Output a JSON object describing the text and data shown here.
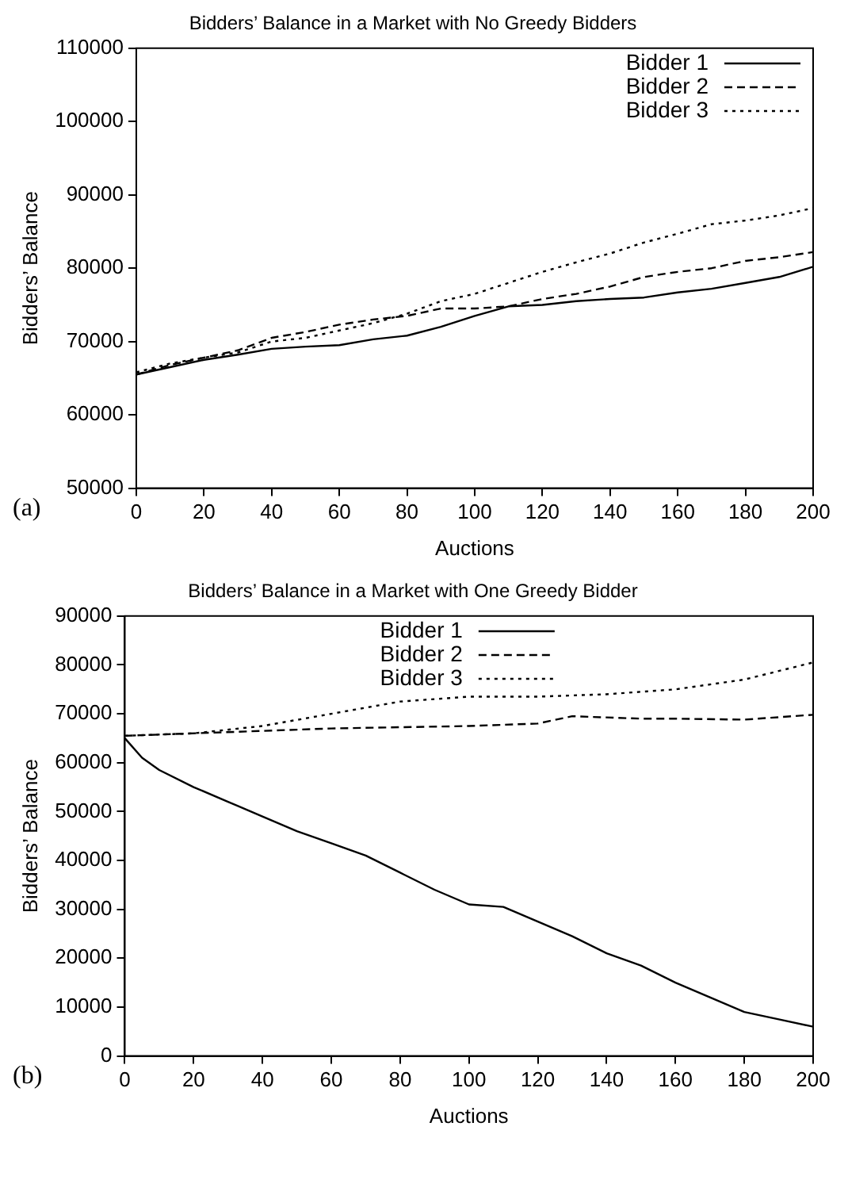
{
  "chart_data": [
    {
      "type": "line",
      "title": "Bidders’ Balance in a Market with No Greedy Bidders",
      "xlabel": "Auctions",
      "ylabel": "Bidders’ Balance",
      "annotations": [
        "(a)"
      ],
      "xlim": [
        0,
        200
      ],
      "xticks": [
        0,
        20,
        40,
        60,
        80,
        100,
        120,
        140,
        160,
        180,
        200
      ],
      "ylim": [
        50000,
        110000
      ],
      "yticks": [
        50000,
        60000,
        70000,
        80000,
        90000,
        100000,
        110000
      ],
      "legend": "top right",
      "marker": "none",
      "series": [
        {
          "name": "Bidder 1",
          "color": "#000000",
          "line_style": "solid",
          "x": [
            0,
            10,
            20,
            30,
            40,
            50,
            60,
            70,
            80,
            90,
            100,
            110,
            120,
            130,
            140,
            150,
            160,
            170,
            180,
            190,
            200
          ],
          "values": [
            65500,
            66500,
            67500,
            68200,
            69000,
            69300,
            69500,
            70300,
            70800,
            72000,
            73500,
            74800,
            75000,
            75500,
            75800,
            76000,
            76700,
            77200,
            78000,
            78800,
            80200
          ]
        },
        {
          "name": "Bidder 2",
          "color": "#000000",
          "line_style": "dashed",
          "x": [
            0,
            10,
            20,
            30,
            40,
            50,
            60,
            70,
            80,
            90,
            100,
            110,
            120,
            130,
            140,
            150,
            160,
            170,
            180,
            190,
            200
          ],
          "values": [
            65500,
            66800,
            67800,
            68800,
            70500,
            71300,
            72300,
            73000,
            73500,
            74500,
            74500,
            74800,
            75800,
            76500,
            77500,
            78800,
            79500,
            80000,
            81000,
            81500,
            82200
          ]
        },
        {
          "name": "Bidder 3",
          "color": "#000000",
          "line_style": "dotted",
          "x": [
            0,
            10,
            20,
            30,
            40,
            50,
            60,
            70,
            80,
            90,
            100,
            110,
            120,
            130,
            140,
            150,
            160,
            170,
            180,
            190,
            200
          ],
          "values": [
            65800,
            67000,
            67800,
            68500,
            70000,
            70500,
            71500,
            72500,
            73800,
            75500,
            76500,
            78000,
            79500,
            80800,
            82000,
            83500,
            84700,
            86000,
            86500,
            87200,
            88200
          ]
        }
      ]
    },
    {
      "type": "line",
      "title": "Bidders’ Balance in a Market with One Greedy Bidder",
      "xlabel": "Auctions",
      "ylabel": "Bidders’ Balance",
      "annotations": [
        "(b)"
      ],
      "xlim": [
        0,
        200
      ],
      "xticks": [
        0,
        20,
        40,
        60,
        80,
        100,
        120,
        140,
        160,
        180,
        200
      ],
      "ylim": [
        0,
        90000
      ],
      "yticks": [
        0,
        10000,
        20000,
        30000,
        40000,
        50000,
        60000,
        70000,
        80000,
        90000
      ],
      "legend": "top",
      "marker": "none",
      "series": [
        {
          "name": "Bidder 1",
          "color": "#000000",
          "line_style": "solid",
          "x": [
            0,
            5,
            10,
            20,
            30,
            40,
            50,
            60,
            70,
            80,
            90,
            100,
            110,
            120,
            130,
            140,
            150,
            160,
            170,
            180,
            190,
            200
          ],
          "values": [
            65000,
            61000,
            58500,
            55000,
            52000,
            49000,
            46000,
            43500,
            41000,
            37500,
            34000,
            31000,
            30500,
            27500,
            24500,
            21000,
            18500,
            15000,
            12000,
            9000,
            7500,
            6000
          ]
        },
        {
          "name": "Bidder 2",
          "color": "#000000",
          "line_style": "dashed",
          "x": [
            0,
            40,
            60,
            100,
            120,
            130,
            150,
            160,
            180,
            200
          ],
          "values": [
            65500,
            66500,
            67000,
            67500,
            68000,
            69500,
            69000,
            69000,
            68800,
            69800
          ]
        },
        {
          "name": "Bidder 3",
          "color": "#000000",
          "line_style": "dotted",
          "x": [
            0,
            20,
            40,
            60,
            80,
            100,
            120,
            140,
            160,
            180,
            200
          ],
          "values": [
            65500,
            66000,
            67500,
            70000,
            72500,
            73500,
            73500,
            74000,
            75000,
            77000,
            80500
          ]
        }
      ]
    }
  ]
}
